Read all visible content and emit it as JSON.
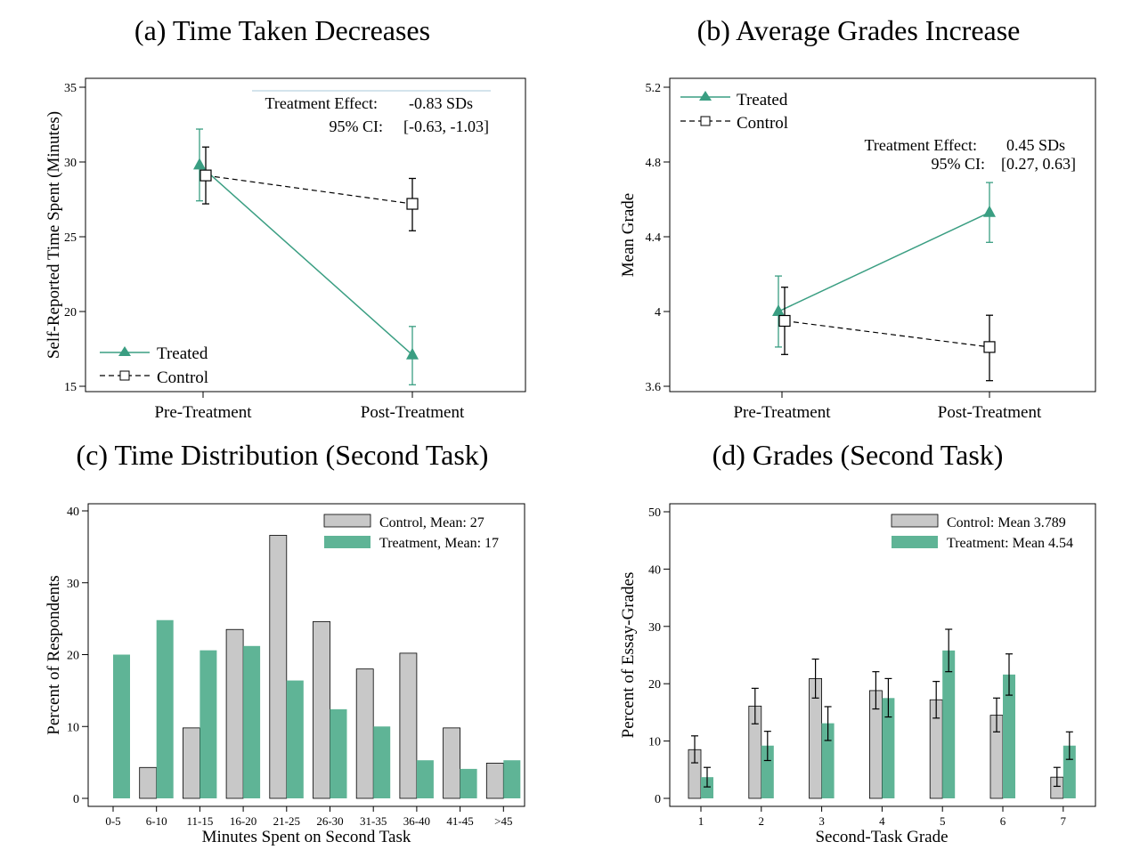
{
  "colors": {
    "treated": "#3a9e82",
    "treatment_fill": "#5fb496",
    "control": "#000000",
    "control_fill": "#c8c8c8"
  },
  "chart_data": [
    {
      "id": "a",
      "type": "line",
      "title": "(a) Time Taken Decreases",
      "xlabel": "",
      "ylabel": "Self-Reported Time Spent (Minutes)",
      "categories": [
        "Pre-Treatment",
        "Post-Treatment"
      ],
      "ylim": [
        15,
        35
      ],
      "yticks": [
        15,
        20,
        25,
        30,
        35
      ],
      "series": [
        {
          "name": "Treated",
          "values": [
            29.8,
            17.1
          ],
          "ci_low": [
            27.4,
            15.1
          ],
          "ci_high": [
            32.2,
            19.0
          ]
        },
        {
          "name": "Control",
          "values": [
            29.1,
            27.2
          ],
          "ci_low": [
            27.2,
            25.4
          ],
          "ci_high": [
            31.0,
            28.9
          ]
        }
      ],
      "annotation": {
        "line1_label": "Treatment Effect:",
        "line1_value": "-0.83 SDs",
        "line2_label": "95% CI:",
        "line2_value": "[-0.63, -1.03]"
      }
    },
    {
      "id": "b",
      "type": "line",
      "title": "(b) Average Grades Increase",
      "xlabel": "",
      "ylabel": "Mean Grade",
      "categories": [
        "Pre-Treatment",
        "Post-Treatment"
      ],
      "ylim": [
        3.6,
        5.2
      ],
      "yticks": [
        3.6,
        4,
        4.4,
        4.8,
        5.2
      ],
      "ytick_labels": [
        "3.6",
        "4",
        "4.4",
        "4.8",
        "5.2"
      ],
      "series": [
        {
          "name": "Treated",
          "values": [
            4.0,
            4.53
          ],
          "ci_low": [
            3.81,
            4.37
          ],
          "ci_high": [
            4.19,
            4.69
          ]
        },
        {
          "name": "Control",
          "values": [
            3.95,
            3.81
          ],
          "ci_low": [
            3.77,
            3.63
          ],
          "ci_high": [
            4.13,
            3.98
          ]
        }
      ],
      "annotation": {
        "line1_label": "Treatment Effect:",
        "line1_value": "0.45 SDs",
        "line2_label": "95% CI:",
        "line2_value": "[0.27, 0.63]"
      }
    },
    {
      "id": "c",
      "type": "bar",
      "title": "(c) Time Distribution (Second Task)",
      "xlabel": "Minutes Spent on Second Task",
      "ylabel": "Percent of Respondents",
      "categories": [
        "0-5",
        "6-10",
        "11-15",
        "16-20",
        "21-25",
        "26-30",
        "31-35",
        "36-40",
        "41-45",
        ">45"
      ],
      "ylim": [
        0,
        40
      ],
      "yticks": [
        0,
        10,
        20,
        30,
        40
      ],
      "series": [
        {
          "name": "Control, Mean: 27",
          "values": [
            0,
            4.3,
            9.8,
            23.5,
            36.6,
            24.6,
            18.0,
            20.2,
            9.8,
            4.9
          ]
        },
        {
          "name": "Treatment, Mean: 17",
          "values": [
            20.0,
            24.8,
            20.6,
            21.2,
            16.4,
            12.4,
            10.0,
            5.3,
            4.1,
            5.3
          ]
        }
      ]
    },
    {
      "id": "d",
      "type": "bar",
      "title": "(d) Grades (Second Task)",
      "xlabel": "Second-Task Grade",
      "ylabel": "Percent of Essay-Grades",
      "categories": [
        "1",
        "2",
        "3",
        "4",
        "5",
        "6",
        "7"
      ],
      "ylim": [
        0,
        50
      ],
      "yticks": [
        0,
        10,
        20,
        30,
        40,
        50
      ],
      "series": [
        {
          "name": "Control: Mean 3.789",
          "values": [
            8.5,
            16.1,
            20.9,
            18.8,
            17.2,
            14.5,
            3.7
          ],
          "ci_low": [
            6.2,
            13.0,
            17.5,
            15.6,
            14.0,
            11.6,
            2.1
          ],
          "ci_high": [
            10.9,
            19.2,
            24.3,
            22.1,
            20.4,
            17.5,
            5.4
          ]
        },
        {
          "name": "Treatment: Mean 4.54",
          "values": [
            3.7,
            9.2,
            13.1,
            17.5,
            25.8,
            21.6,
            9.2
          ],
          "ci_low": [
            2.0,
            6.6,
            10.1,
            14.2,
            22.1,
            18.0,
            6.8
          ],
          "ci_high": [
            5.4,
            11.7,
            16.0,
            20.9,
            29.5,
            25.2,
            11.6
          ]
        }
      ]
    }
  ]
}
